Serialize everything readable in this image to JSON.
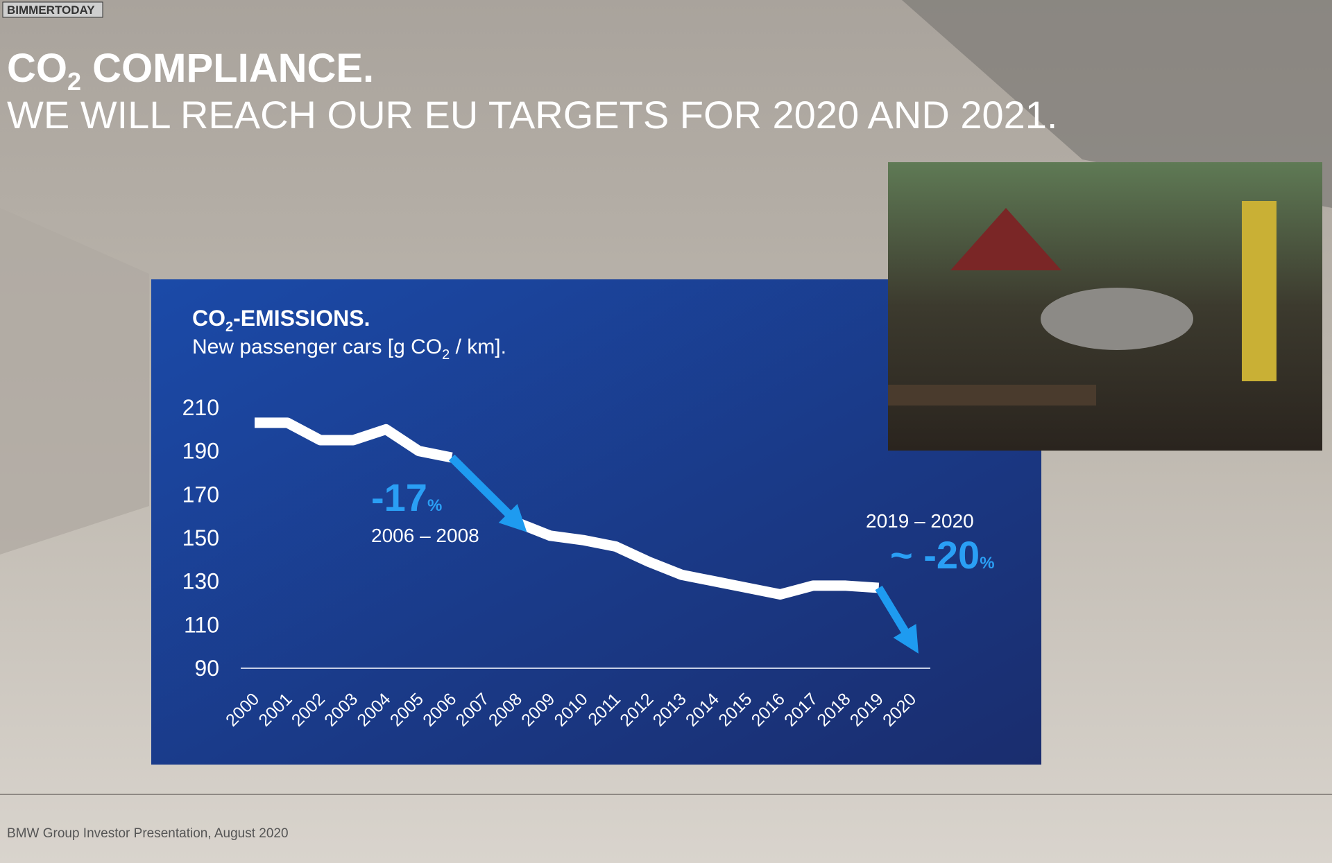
{
  "watermark": "BIMMERTODAY",
  "header": {
    "title": [
      "CO",
      "2",
      " COMPLIANCE."
    ],
    "subtitle": "WE WILL REACH OUR EU TARGETS FOR 2020 AND 2021."
  },
  "footer": "BMW Group Investor Presentation, August 2020",
  "chart_data": {
    "type": "line",
    "title": [
      "CO",
      "2",
      "-EMISSIONS."
    ],
    "subtitle": [
      "New passenger cars [g CO",
      "2",
      " / km]."
    ],
    "categories": [
      "2000",
      "2001",
      "2002",
      "2003",
      "2004",
      "2005",
      "2006",
      "2007",
      "2008",
      "2009",
      "2010",
      "2011",
      "2012",
      "2013",
      "2014",
      "2015",
      "2016",
      "2017",
      "2018",
      "2019",
      "2020"
    ],
    "series": [
      {
        "color": "#ffffff",
        "values": [
          203,
          203,
          195,
          195,
          200,
          190,
          187,
          null,
          157,
          151,
          149,
          146,
          139,
          133,
          130,
          127,
          124,
          128,
          128,
          127,
          null
        ]
      },
      {
        "color": "#1e9bf0",
        "arrow": true,
        "values": [
          null,
          null,
          null,
          null,
          null,
          null,
          187,
          172,
          157,
          null,
          null,
          null,
          null,
          null,
          null,
          null,
          null,
          null,
          null,
          127,
          102
        ]
      }
    ],
    "ylim": [
      90,
      210
    ],
    "yticks": [
      90,
      110,
      130,
      150,
      170,
      190,
      210
    ],
    "annotations": [
      {
        "text": "-17",
        "unit": "%",
        "period": "2006 – 2008"
      },
      {
        "text": "~ -20",
        "unit": "%",
        "period": "2019 – 2020"
      }
    ]
  }
}
